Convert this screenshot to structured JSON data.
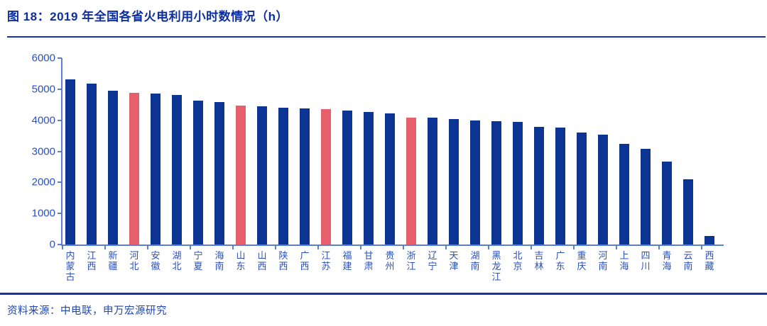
{
  "header": {
    "title": "图 18：2019 年全国各省火电利用小时数情况（h）"
  },
  "footer": {
    "source": "资料来源：中电联，申万宏源研究"
  },
  "colors": {
    "bar": "#0B3493",
    "bar_highlight": "#E5606A",
    "title_text": "#0D2E9E",
    "divider": "#1734A0",
    "axis_line": "#5B7FD4",
    "axis_label": "#2B50B9",
    "source_text": "#2247B0"
  },
  "chart_data": {
    "type": "bar",
    "title": "2019 年全国各省火电利用小时数情况（h）",
    "xlabel": "",
    "ylabel": "",
    "ylim": [
      0,
      6000
    ],
    "yticks": [
      0,
      1000,
      2000,
      3000,
      4000,
      5000,
      6000
    ],
    "grid": false,
    "legend": "none",
    "categories": [
      "内蒙古",
      "江西",
      "新疆",
      "河北",
      "安徽",
      "湖北",
      "宁夏",
      "海南",
      "山东",
      "山西",
      "陕西",
      "广西",
      "江苏",
      "福建",
      "甘肃",
      "贵州",
      "浙江",
      "辽宁",
      "天津",
      "湖南",
      "黑龙江",
      "北京",
      "吉林",
      "广东",
      "重庆",
      "河南",
      "上海",
      "四川",
      "青海",
      "云南",
      "西藏"
    ],
    "values": [
      5310,
      5190,
      4960,
      4880,
      4870,
      4820,
      4640,
      4590,
      4480,
      4450,
      4400,
      4370,
      4360,
      4320,
      4270,
      4230,
      4090,
      4080,
      4040,
      3990,
      3970,
      3940,
      3790,
      3770,
      3610,
      3540,
      3250,
      3090,
      2670,
      2110,
      280
    ],
    "highlighted_categories": [
      "河北",
      "山东",
      "江苏",
      "浙江"
    ]
  }
}
